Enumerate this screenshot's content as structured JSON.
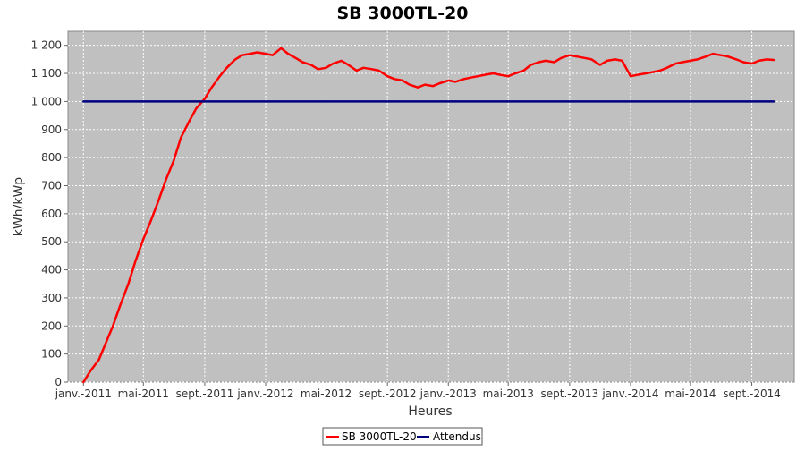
{
  "chart_data": {
    "type": "line",
    "title": "SB 3000TL-20",
    "xlabel": "Heures",
    "ylabel": "kWh/kWp",
    "ylim": [
      0,
      1250
    ],
    "yticks": [
      0,
      100,
      200,
      300,
      400,
      500,
      600,
      700,
      800,
      900,
      1000,
      1100,
      1200
    ],
    "ytick_labels": [
      "0",
      "100",
      "200",
      "300",
      "400",
      "500",
      "600",
      "700",
      "800",
      "900",
      "1 000",
      "1 100",
      "1 200"
    ],
    "xlim": [
      "2010-12-01",
      "2014-11-25"
    ],
    "xticks": [
      "2011-01-01",
      "2011-05-01",
      "2011-09-01",
      "2012-01-01",
      "2012-05-01",
      "2012-09-01",
      "2013-01-01",
      "2013-05-01",
      "2013-09-01",
      "2014-01-01",
      "2014-05-01",
      "2014-09-01"
    ],
    "xtick_labels": [
      "janv.-2011",
      "mai-2011",
      "sept.-2011",
      "janv.-2012",
      "mai-2012",
      "sept.-2012",
      "janv.-2013",
      "mai-2013",
      "sept.-2013",
      "janv.-2014",
      "mai-2014",
      "sept.-2014"
    ],
    "grid": true,
    "legend_position": "bottom",
    "series": [
      {
        "name": "SB 3000TL-20",
        "color": "#ff0000",
        "x": [
          "2011-01-01",
          "2011-01-15",
          "2011-02-01",
          "2011-02-15",
          "2011-03-01",
          "2011-03-15",
          "2011-04-01",
          "2011-04-15",
          "2011-05-01",
          "2011-05-15",
          "2011-06-01",
          "2011-06-15",
          "2011-07-01",
          "2011-07-15",
          "2011-08-01",
          "2011-08-15",
          "2011-09-01",
          "2011-09-15",
          "2011-10-01",
          "2011-10-15",
          "2011-11-01",
          "2011-11-15",
          "2011-12-01",
          "2011-12-15",
          "2012-01-01",
          "2012-01-15",
          "2012-02-01",
          "2012-02-15",
          "2012-03-01",
          "2012-03-15",
          "2012-04-01",
          "2012-04-15",
          "2012-05-01",
          "2012-05-15",
          "2012-06-01",
          "2012-06-15",
          "2012-07-01",
          "2012-07-15",
          "2012-08-01",
          "2012-08-15",
          "2012-09-01",
          "2012-09-15",
          "2012-10-01",
          "2012-10-15",
          "2012-11-01",
          "2012-11-15",
          "2012-12-01",
          "2012-12-15",
          "2013-01-01",
          "2013-01-15",
          "2013-02-01",
          "2013-02-15",
          "2013-03-01",
          "2013-03-15",
          "2013-04-01",
          "2013-04-15",
          "2013-05-01",
          "2013-05-15",
          "2013-06-01",
          "2013-06-15",
          "2013-07-01",
          "2013-07-15",
          "2013-08-01",
          "2013-08-15",
          "2013-09-01",
          "2013-09-15",
          "2013-10-01",
          "2013-10-15",
          "2013-11-01",
          "2013-11-15",
          "2013-12-01",
          "2013-12-15",
          "2014-01-01",
          "2014-01-15",
          "2014-02-01",
          "2014-02-15",
          "2014-03-01",
          "2014-03-15",
          "2014-04-01",
          "2014-04-15",
          "2014-05-01",
          "2014-05-15",
          "2014-06-01",
          "2014-06-15",
          "2014-07-01",
          "2014-07-15",
          "2014-08-01",
          "2014-08-15",
          "2014-09-01",
          "2014-09-15",
          "2014-10-01",
          "2014-10-15"
        ],
        "values": [
          0,
          40,
          80,
          140,
          200,
          270,
          350,
          430,
          510,
          570,
          650,
          720,
          790,
          870,
          930,
          975,
          1010,
          1050,
          1090,
          1120,
          1150,
          1165,
          1170,
          1175,
          1170,
          1165,
          1190,
          1170,
          1155,
          1140,
          1130,
          1115,
          1120,
          1135,
          1145,
          1130,
          1110,
          1120,
          1115,
          1110,
          1090,
          1080,
          1075,
          1060,
          1050,
          1060,
          1055,
          1065,
          1075,
          1070,
          1080,
          1085,
          1090,
          1095,
          1100,
          1095,
          1090,
          1100,
          1110,
          1130,
          1140,
          1145,
          1140,
          1155,
          1165,
          1160,
          1155,
          1150,
          1130,
          1145,
          1150,
          1145,
          1090,
          1095,
          1100,
          1105,
          1110,
          1120,
          1135,
          1140,
          1145,
          1150,
          1160,
          1170,
          1165,
          1160,
          1150,
          1140,
          1135,
          1145,
          1150,
          1148
        ]
      },
      {
        "name": "Attendus",
        "color": "#000080",
        "x": [
          "2011-01-01",
          "2014-10-15"
        ],
        "values": [
          1000,
          1000
        ]
      }
    ]
  }
}
